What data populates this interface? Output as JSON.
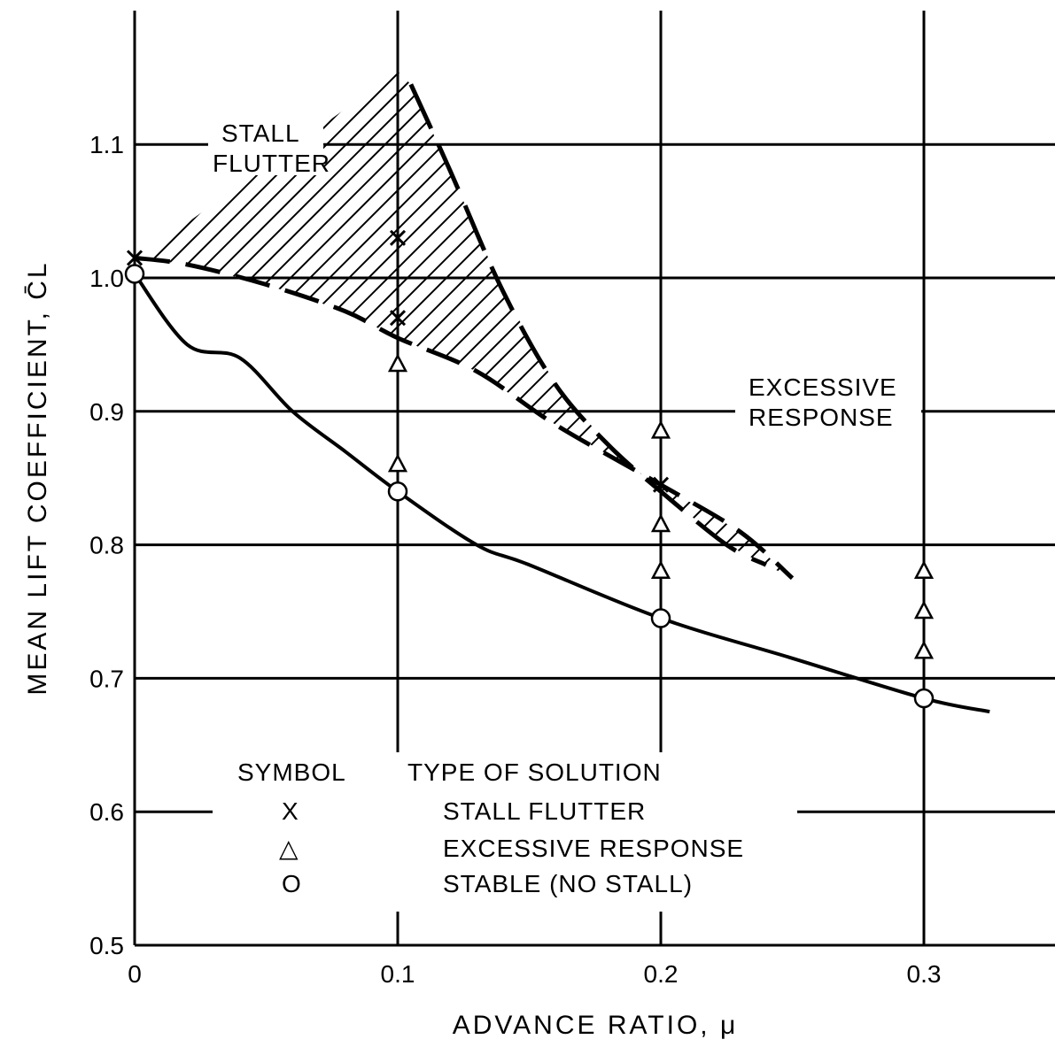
{
  "chart_data": {
    "type": "scatter",
    "title": "",
    "xlabel": "ADVANCE RATIO, μ",
    "ylabel": "MEAN LIFT COEFFICIENT, C̄L",
    "xlim": [
      0,
      0.35
    ],
    "ylim": [
      0.5,
      1.2
    ],
    "grid": true,
    "x_ticks": [
      "0",
      "0.1",
      "0.2",
      "0.3"
    ],
    "y_ticks": [
      "0.5",
      "0.6",
      "0.7",
      "0.8",
      "0.9",
      "1.0",
      "1.1"
    ],
    "series": [
      {
        "name": "STALL FLUTTER",
        "marker": "X",
        "points": [
          [
            0,
            1.015
          ],
          [
            0.1,
            1.03
          ],
          [
            0.1,
            0.97
          ],
          [
            0.2,
            0.845
          ]
        ]
      },
      {
        "name": "EXCESSIVE RESPONSE",
        "marker": "triangle",
        "points": [
          [
            0.1,
            0.935
          ],
          [
            0.1,
            0.86
          ],
          [
            0.2,
            0.885
          ],
          [
            0.2,
            0.815
          ],
          [
            0.2,
            0.78
          ],
          [
            0.3,
            0.78
          ],
          [
            0.3,
            0.75
          ],
          [
            0.3,
            0.72
          ]
        ]
      },
      {
        "name": "STABLE (NO STALL)",
        "marker": "circle",
        "points": [
          [
            0,
            1.003
          ],
          [
            0.1,
            0.84
          ],
          [
            0.2,
            0.745
          ],
          [
            0.3,
            0.685
          ]
        ]
      }
    ],
    "curves": [
      {
        "style": "solid",
        "points": [
          [
            0,
            1.003
          ],
          [
            0.02,
            0.95
          ],
          [
            0.04,
            0.94
          ],
          [
            0.06,
            0.9
          ],
          [
            0.08,
            0.87
          ],
          [
            0.1,
            0.84
          ],
          [
            0.13,
            0.8
          ],
          [
            0.15,
            0.785
          ],
          [
            0.2,
            0.745
          ],
          [
            0.25,
            0.715
          ],
          [
            0.3,
            0.685
          ],
          [
            0.325,
            0.675
          ]
        ]
      },
      {
        "style": "dashed",
        "points": [
          [
            0,
            1.015
          ],
          [
            0.02,
            1.01
          ],
          [
            0.05,
            0.995
          ],
          [
            0.08,
            0.975
          ],
          [
            0.1,
            0.955
          ],
          [
            0.13,
            0.93
          ],
          [
            0.16,
            0.89
          ],
          [
            0.2,
            0.845
          ],
          [
            0.23,
            0.81
          ],
          [
            0.25,
            0.775
          ]
        ]
      },
      {
        "style": "dashed-boundary",
        "points": [
          [
            0.105,
            1.145
          ],
          [
            0.12,
            1.08
          ],
          [
            0.14,
            0.99
          ],
          [
            0.16,
            0.92
          ],
          [
            0.18,
            0.875
          ],
          [
            0.2,
            0.84
          ],
          [
            0.225,
            0.8
          ],
          [
            0.24,
            0.785
          ]
        ]
      }
    ],
    "annotations": [
      {
        "lines": [
          "STALL",
          "FLUTTER"
        ]
      },
      {
        "lines": [
          "EXCESSIVE",
          "RESPONSE"
        ]
      }
    ],
    "legend": {
      "placement": "bottom-center",
      "header_symbol": "SYMBOL",
      "header_type": "TYPE OF SOLUTION",
      "rows": [
        {
          "symbol": "X",
          "label": "STALL FLUTTER"
        },
        {
          "symbol": "△",
          "label": "EXCESSIVE RESPONSE"
        },
        {
          "symbol": "O",
          "label": "STABLE (NO STALL)"
        }
      ]
    }
  }
}
